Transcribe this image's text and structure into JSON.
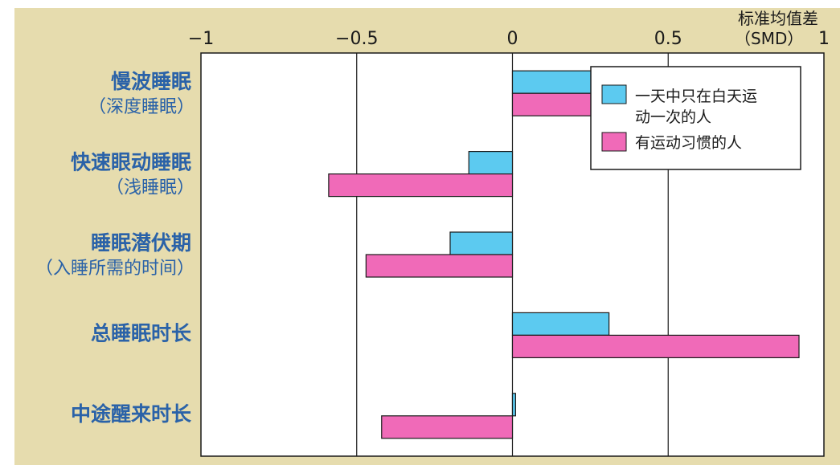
{
  "chart_data": {
    "type": "bar",
    "orientation": "horizontal",
    "unit_label_line1": "标准均值差",
    "unit_label_line2": "（SMD）",
    "xlim": [
      -1,
      1
    ],
    "tick_values": [
      -1,
      -0.5,
      0,
      0.5,
      1
    ],
    "tick_labels": [
      "−1",
      "−0.5",
      "0",
      "0.5",
      "1"
    ],
    "grid": true,
    "legend_position": "top-right",
    "categories": [
      {
        "name": "慢波睡眠",
        "sub": "（深度睡眠）"
      },
      {
        "name": "快速眼动睡眠",
        "sub": "（浅睡眠）"
      },
      {
        "name": "睡眠潜伏期",
        "sub": "（入睡所需的时间）"
      },
      {
        "name": "总睡眠时长",
        "sub": ""
      },
      {
        "name": "中途醒来时长",
        "sub": ""
      }
    ],
    "series": [
      {
        "name_line1": "一天中只在白天运",
        "name_line2": "动一次的人",
        "color": "#5ccaf0",
        "values": [
          0.26,
          -0.14,
          -0.2,
          0.31,
          0.01
        ]
      },
      {
        "name_line1": "有运动习惯的人",
        "name_line2": "",
        "color": "#f06ab8",
        "values": [
          0.42,
          -0.59,
          -0.47,
          0.92,
          -0.42
        ]
      }
    ]
  }
}
